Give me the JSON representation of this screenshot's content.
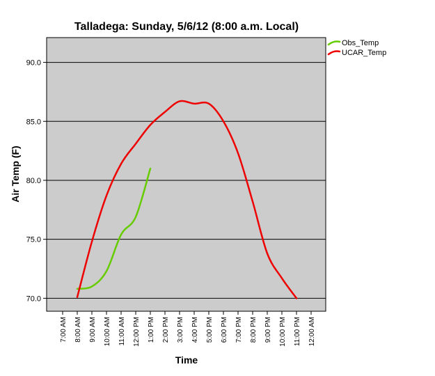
{
  "chart_data": {
    "type": "line",
    "title": "Talladega: Sunday, 5/6/12 (8:00 a.m. Local)",
    "xlabel": "Time",
    "ylabel": "Air Temp (F)",
    "x_categories": [
      "7:00 AM",
      "8:00 AM",
      "9:00 AM",
      "10:00 AM",
      "11:00 AM",
      "12:00 PM",
      "1:00 PM",
      "2:00 PM",
      "3:00 PM",
      "4:00 PM",
      "5:00 PM",
      "6:00 PM",
      "7:00 PM",
      "8:00 PM",
      "9:00 PM",
      "10:00 PM",
      "11:00 PM",
      "12:00 AM"
    ],
    "ylim": [
      68.9,
      92.1
    ],
    "yticks": [
      "70.0",
      "75.0",
      "80.0",
      "85.0",
      "90.0"
    ],
    "ytick_values": [
      70,
      75,
      80,
      85,
      90
    ],
    "grid": "horizontal",
    "legend_position": "top-right",
    "background_color": "#cccccc",
    "series": [
      {
        "name": "Obs_Temp",
        "color": "#66cc00",
        "points": [
          {
            "x": "8:00 AM",
            "y": 70.8
          },
          {
            "x": "9:00 AM",
            "y": 71.0
          },
          {
            "x": "10:00 AM",
            "y": 72.3
          },
          {
            "x": "11:00 AM",
            "y": 75.4
          },
          {
            "x": "12:00 PM",
            "y": 76.9
          },
          {
            "x": "1:00 PM",
            "y": 81.0
          }
        ]
      },
      {
        "name": "UCAR_Temp",
        "color": "#ee0000",
        "points": [
          {
            "x": "8:00 AM",
            "y": 70.1
          },
          {
            "x": "9:00 AM",
            "y": 74.8
          },
          {
            "x": "10:00 AM",
            "y": 78.7
          },
          {
            "x": "11:00 AM",
            "y": 81.4
          },
          {
            "x": "12:00 PM",
            "y": 83.1
          },
          {
            "x": "1:00 PM",
            "y": 84.7
          },
          {
            "x": "2:00 PM",
            "y": 85.8
          },
          {
            "x": "3:00 PM",
            "y": 86.7
          },
          {
            "x": "4:00 PM",
            "y": 86.5
          },
          {
            "x": "5:00 PM",
            "y": 86.5
          },
          {
            "x": "6:00 PM",
            "y": 85.0
          },
          {
            "x": "7:00 PM",
            "y": 82.3
          },
          {
            "x": "8:00 PM",
            "y": 78.2
          },
          {
            "x": "9:00 PM",
            "y": 73.8
          },
          {
            "x": "10:00 PM",
            "y": 71.7
          },
          {
            "x": "11:00 PM",
            "y": 70.0
          }
        ]
      }
    ]
  }
}
